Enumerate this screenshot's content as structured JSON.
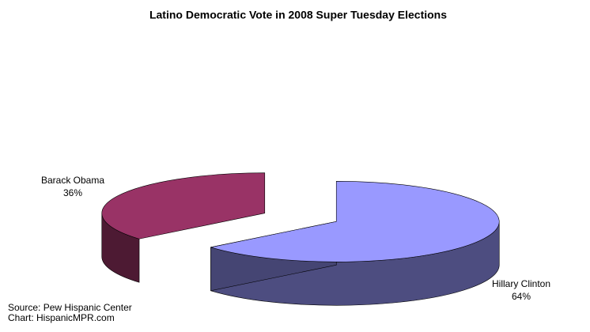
{
  "chart_data": {
    "type": "pie",
    "title": "Latino Democratic Vote in 2008 Super Tuesday Elections",
    "categories": [
      "Hillary Clinton",
      "Barack Obama"
    ],
    "values": [
      64,
      36
    ],
    "value_labels": [
      "64%",
      "36%"
    ],
    "colors": [
      "#9999ff",
      "#993366"
    ],
    "source": [
      "Source: Pew Hispanic Center",
      "Chart: HispanicMPR.com"
    ]
  }
}
